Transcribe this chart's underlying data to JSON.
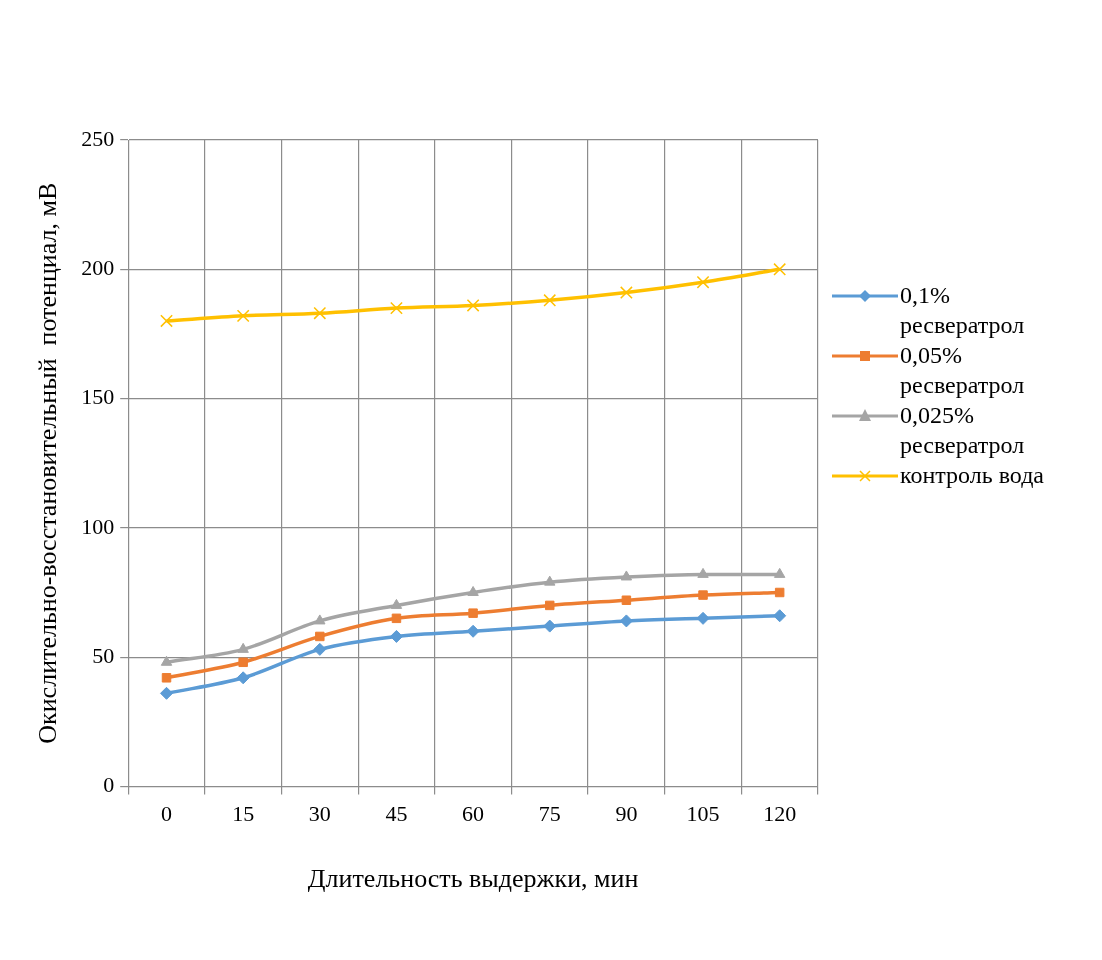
{
  "chart_data": {
    "type": "line",
    "xlabel": "Длительность выдержки, мин",
    "ylabel": "Окислительно-восстановительный  потенциал, мВ",
    "categories": [
      "0",
      "15",
      "30",
      "45",
      "60",
      "75",
      "90",
      "105",
      "120"
    ],
    "ylim": [
      0,
      250
    ],
    "yticks": [
      0,
      50,
      100,
      150,
      200,
      250
    ],
    "grid": true,
    "legend": "right",
    "series": [
      {
        "name": "0,1% ресвератрол",
        "color": "#5b9bd5",
        "marker": "diamond",
        "values": [
          36,
          42,
          53,
          58,
          60,
          62,
          64,
          65,
          66
        ]
      },
      {
        "name": "0,05% ресвератрол",
        "color": "#ed7d31",
        "marker": "square",
        "values": [
          42,
          48,
          58,
          65,
          67,
          70,
          72,
          74,
          75
        ]
      },
      {
        "name": "0,025% ресвератрол",
        "color": "#a5a5a5",
        "marker": "triangle",
        "values": [
          48,
          53,
          64,
          70,
          75,
          79,
          81,
          82,
          82
        ]
      },
      {
        "name": "контроль вода",
        "color": "#ffc000",
        "marker": "cross",
        "values": [
          180,
          182,
          183,
          185,
          186,
          188,
          191,
          195,
          200
        ]
      }
    ]
  }
}
